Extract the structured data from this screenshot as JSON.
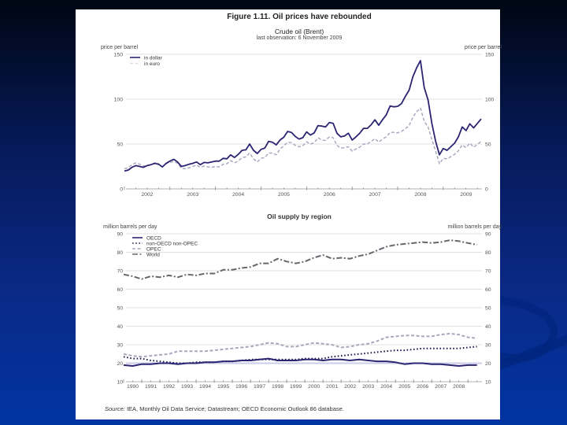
{
  "figure": {
    "title": "Figure 1.11. Oil prices have rebounded",
    "source_label": "Source:",
    "source_text": " IEA, Monthly Oil Data Service; Datastream; OECD Economic Outlook 86 database."
  },
  "chart_data": [
    {
      "type": "line",
      "title": "Crude oil (Brent)",
      "subtitle": "last observation: 6 November 2009",
      "ylabel_left": "price per barrel",
      "ylabel_right": "price per barrel",
      "xlabel": "",
      "ylim": [
        0,
        150
      ],
      "yticks": [
        "0",
        "50",
        "100",
        "150"
      ],
      "xlim": [
        2002,
        2009.85
      ],
      "xtick_labels": [
        "2002",
        "2003",
        "2004",
        "2005",
        "2006",
        "2007",
        "2008",
        "2009"
      ],
      "grid": true,
      "legend": "top-left",
      "x_start": "2002-01",
      "frequency": "monthly",
      "series": [
        {
          "name": "in dollar",
          "color": "#2b2572",
          "line_style": "solid",
          "values": [
            20,
            21,
            24,
            26,
            25,
            24,
            26,
            27,
            28.5,
            27.5,
            24.5,
            28.5,
            31,
            33,
            30,
            25,
            26,
            27.5,
            28.5,
            30,
            27,
            29.5,
            29,
            30,
            31,
            31,
            34,
            33.5,
            38,
            35,
            38.5,
            43,
            43.5,
            50,
            43,
            39.5,
            44,
            45.5,
            53,
            52,
            49,
            54.5,
            57.5,
            64,
            63,
            58.5,
            55.5,
            57,
            63.5,
            60,
            62.5,
            70.5,
            70,
            69,
            74,
            73,
            62,
            58,
            59,
            62,
            54.5,
            58,
            62,
            67.5,
            67.5,
            71.5,
            77,
            71,
            77,
            82.5,
            92.5,
            91.5,
            92,
            95,
            103,
            110,
            125,
            135,
            143,
            113,
            99,
            73,
            53,
            38,
            45,
            43,
            47,
            51,
            58,
            69,
            65,
            72.5,
            68,
            73,
            78
          ]
        },
        {
          "name": "in euro",
          "color": "#a6a3bd",
          "line_style": "dashed",
          "values": [
            22.5,
            23.5,
            27,
            29,
            27.5,
            25.5,
            26,
            27,
            29,
            28,
            24.5,
            28,
            29.5,
            30.5,
            28.5,
            23,
            22.5,
            23.5,
            25,
            26.5,
            24,
            25.5,
            24.5,
            24,
            25,
            24.5,
            27.5,
            28,
            31.5,
            29,
            31,
            35,
            35.5,
            40,
            33.5,
            30,
            34,
            35,
            40,
            40,
            38,
            44.5,
            48,
            52,
            51.5,
            48.5,
            47,
            48,
            52.5,
            50,
            51.5,
            57,
            54.5,
            54,
            58,
            57,
            48.5,
            45.5,
            46,
            47,
            42,
            44.5,
            46.5,
            50,
            50,
            53,
            56,
            52,
            55.5,
            58,
            63,
            63,
            62.5,
            64,
            67,
            70.5,
            80,
            86,
            90,
            75.5,
            69,
            55,
            42,
            28,
            34,
            33.5,
            36,
            38.5,
            42.5,
            49,
            46,
            51,
            46.5,
            49.5,
            53
          ]
        }
      ]
    },
    {
      "type": "line",
      "title": "Oil supply by region",
      "subtitle": "",
      "ylabel_left": "million barrels per day",
      "ylabel_right": "million barrels per day",
      "xlabel": "",
      "ylim": [
        10,
        90
      ],
      "yticks": [
        "10",
        "20",
        "30",
        "40",
        "50",
        "60",
        "70",
        "80",
        "90"
      ],
      "xlim": [
        1990,
        2009.6
      ],
      "xtick_labels": [
        "1990",
        "1991",
        "1992",
        "1993",
        "1994",
        "1995",
        "1996",
        "1997",
        "1998",
        "1999",
        "2000",
        "2001",
        "2002",
        "2003",
        "2004",
        "2005",
        "2006",
        "2007",
        "2008"
      ],
      "grid": true,
      "legend": "top-left",
      "x_start": "1990-01",
      "frequency": "semiannual",
      "series": [
        {
          "name": "OECD",
          "color": "#2b2572",
          "line_style": "solid",
          "values": [
            19,
            18.5,
            19.5,
            19.5,
            20,
            20,
            19.5,
            20,
            20,
            20.5,
            20.5,
            21,
            21,
            21.5,
            21.5,
            22,
            22.5,
            21.5,
            21.5,
            21.5,
            22,
            22,
            21.5,
            22,
            22,
            21.5,
            22,
            21.5,
            21,
            21,
            20.5,
            19.5,
            20,
            20,
            19.5,
            19.5,
            19,
            18.5,
            19,
            19
          ]
        },
        {
          "name": "non-OECD non-OPEC",
          "color": "#1e1a50",
          "line_style": "dotted",
          "values": [
            23.5,
            22.5,
            22.5,
            21.5,
            21,
            20.5,
            20,
            20,
            20.5,
            20.5,
            20.5,
            21,
            21,
            21.5,
            22,
            22,
            22,
            22,
            22,
            22,
            22.5,
            22.5,
            22.5,
            23.5,
            24,
            24.5,
            25,
            25.5,
            26,
            26.5,
            27,
            27,
            27.5,
            28,
            28,
            28,
            28,
            28,
            28.5,
            29
          ]
        },
        {
          "name": "OPEC",
          "color": "#a8a8bc",
          "line_style": "dashed",
          "values": [
            25,
            24,
            23.5,
            24,
            24.5,
            25,
            26.5,
            26.5,
            26.5,
            26.5,
            27,
            27.5,
            28,
            28.5,
            29,
            30,
            31,
            30.5,
            29,
            29,
            30,
            31,
            30.5,
            30,
            28.5,
            29,
            30,
            30.5,
            32,
            34,
            34.5,
            35,
            35,
            34.5,
            34.5,
            35.5,
            36,
            35.5,
            34,
            33.5
          ]
        },
        {
          "name": "World",
          "color": "#66666e",
          "line_style": "dash-dot",
          "values": [
            68,
            67,
            65.5,
            67,
            66.5,
            67.5,
            66.5,
            68,
            67.5,
            68.5,
            68.5,
            70.5,
            70.5,
            71.5,
            72,
            74,
            74,
            76.5,
            75,
            74,
            75,
            77,
            78.5,
            76.5,
            77,
            76.5,
            78,
            79,
            81,
            83,
            84,
            84.5,
            85,
            85.5,
            85,
            85.5,
            86.5,
            86,
            85,
            84
          ]
        }
      ]
    }
  ]
}
